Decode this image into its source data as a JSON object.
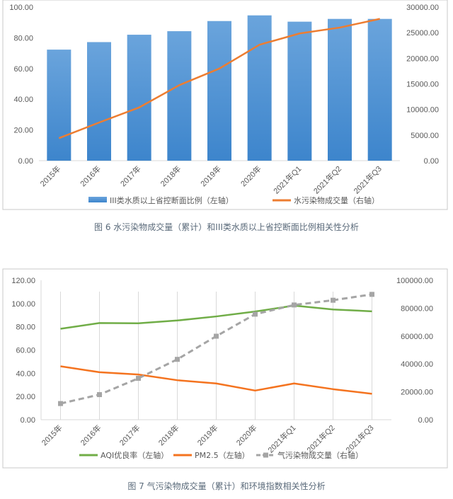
{
  "chart_data": [
    {
      "type": "bar+line",
      "title": "",
      "caption": "图 6  水污染物成交量（累计）和III类水质以上省控断面比例相关性分析",
      "categories": [
        "2015年",
        "2016年",
        "2017年",
        "2018年",
        "2019年",
        "2020年",
        "2021年Q1",
        "2021年Q2",
        "2021年Q3"
      ],
      "left_axis": {
        "ylim": [
          0,
          100
        ],
        "ticks": [
          "0.00",
          "20.00",
          "40.00",
          "60.00",
          "80.00",
          "100.00"
        ]
      },
      "right_axis": {
        "ylim": [
          0,
          30000
        ],
        "ticks": [
          "0.00",
          "5000.00",
          "10000.00",
          "15000.00",
          "20000.00",
          "25000.00",
          "30000.00"
        ]
      },
      "grid": false,
      "legend": "bottom",
      "series": [
        {
          "name": "III类水质以上省控断面比例（左轴）",
          "kind": "bar",
          "axis": "left",
          "color": "#4a8fd6",
          "values": [
            72.3,
            77.2,
            82.0,
            84.3,
            90.9,
            94.6,
            90.5,
            92.3,
            92.3
          ]
        },
        {
          "name": "水污染物成交量（右轴）",
          "kind": "line",
          "axis": "right",
          "color": "#ed7d31",
          "values": [
            4400,
            7450,
            10400,
            14750,
            18000,
            22650,
            24850,
            26000,
            27700
          ]
        }
      ]
    },
    {
      "type": "line",
      "title": "",
      "caption": "图 7  气污染物成交量（累计）和环境指数相关性分析",
      "categories": [
        "2015年",
        "2016年",
        "2017年",
        "2018年",
        "2019年",
        "2020年",
        "2021年Q1",
        "2021年Q2",
        "2021年Q3"
      ],
      "left_axis": {
        "ylim": [
          0,
          120
        ],
        "ticks": [
          "0.00",
          "20.00",
          "40.00",
          "60.00",
          "80.00",
          "100.00",
          "120.00"
        ]
      },
      "right_axis": {
        "ylim": [
          0,
          100000
        ],
        "ticks": [
          "0.00",
          "20000.00",
          "40000.00",
          "60000.00",
          "80000.00",
          "100000.00"
        ]
      },
      "grid": "vertical",
      "legend": "bottom",
      "series": [
        {
          "name": "AQI优良率（左轴）",
          "axis": "left",
          "color": "#70ad47",
          "dash": false,
          "values": [
            78.3,
            83.2,
            83.0,
            85.4,
            88.9,
            93.1,
            98.2,
            94.9,
            93.3
          ]
        },
        {
          "name": "PM2.5（左轴）",
          "axis": "left",
          "color": "#f4731f",
          "dash": false,
          "values": [
            46.0,
            40.9,
            38.9,
            34.0,
            31.2,
            25.1,
            31.2,
            26.3,
            22.3
          ]
        },
        {
          "name": "气污染物成交量（右轴）",
          "axis": "right",
          "color": "#a5a5a5",
          "dash": true,
          "values": [
            11600,
            18000,
            29700,
            43300,
            59900,
            75700,
            82300,
            85700,
            89900
          ]
        }
      ]
    }
  ]
}
